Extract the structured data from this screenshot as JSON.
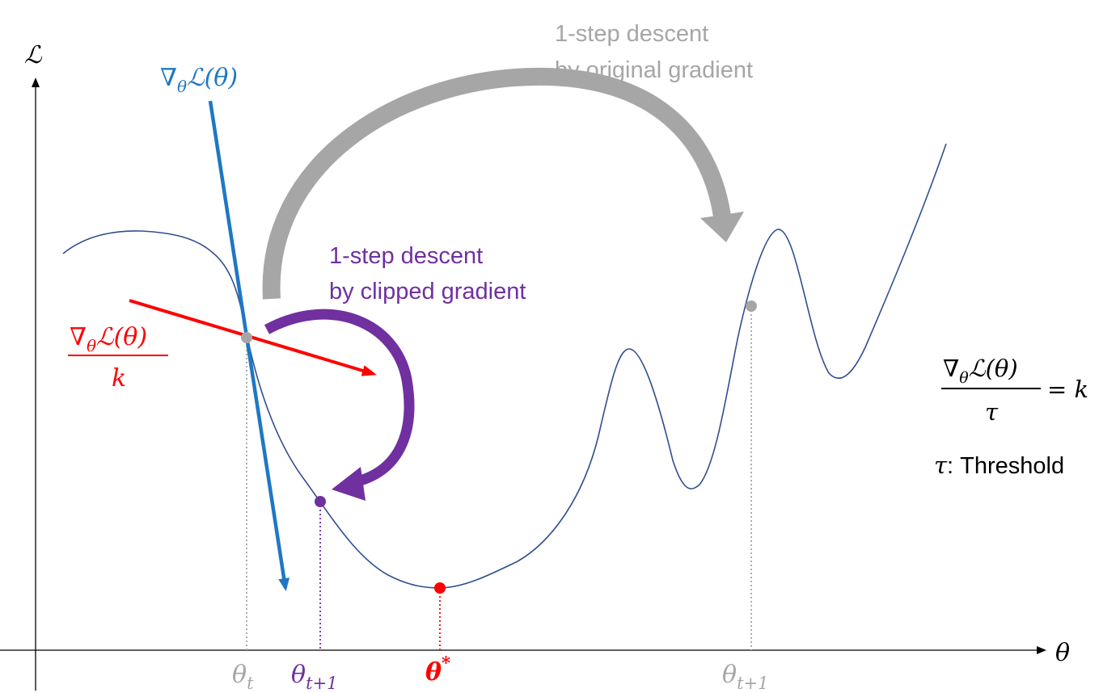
{
  "axes": {
    "y_label": "ℒ",
    "x_label": "θ"
  },
  "annotations": {
    "gradient_label": {
      "nabla": "∇",
      "sub": "θ",
      "rest": "ℒ(θ)"
    },
    "clipped_label": {
      "numerator_nabla": "∇",
      "numerator_sub": "θ",
      "numerator_rest": "ℒ(θ)",
      "denominator": "k"
    },
    "original_step": {
      "line1": "1-step descent",
      "line2": "by original gradient"
    },
    "clipped_step": {
      "line1": "1-step descent",
      "line2": "by clipped gradient"
    },
    "formula": {
      "numerator_nabla": "∇",
      "numerator_sub": "θ",
      "numerator_rest": "ℒ(θ)",
      "denominator": "τ",
      "rhs": "= k"
    },
    "threshold": {
      "symbol": "τ",
      "text": ": Threshold"
    }
  },
  "x_ticks": {
    "theta_t": {
      "base": "θ",
      "sub": "t"
    },
    "theta_t1_clipped": {
      "base": "θ",
      "sub": "t+1"
    },
    "theta_star": {
      "base": "θ",
      "sup": "*"
    },
    "theta_t1_original": {
      "base": "θ",
      "sub": "t+1"
    }
  },
  "colors": {
    "curve": "#2f4f8f",
    "gradient": "#1f77c4",
    "clipped": "#ff0000",
    "original_arrow": "#a6a6a6",
    "clipped_arrow": "#7030a0",
    "point_gray": "#a6a6a6",
    "point_purple": "#7030a0",
    "point_red": "#ff0000",
    "axis": "#000000"
  }
}
